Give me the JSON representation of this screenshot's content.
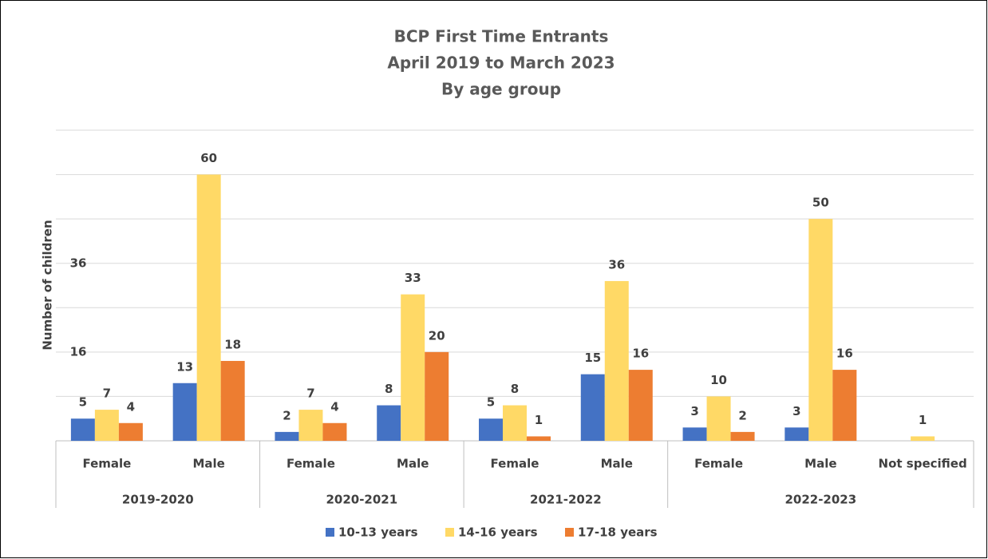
{
  "chart_data": {
    "type": "bar",
    "title": [
      "BCP First Time Entrants",
      "April 2019 to March 2023",
      "By age group"
    ],
    "y_label": "Number of children",
    "annotations": [
      "16",
      "36"
    ],
    "categories": [
      "Female",
      "Male",
      "Female",
      "Male",
      "Female",
      "Male",
      "Female",
      "Male",
      "Not specified"
    ],
    "groups": [
      {
        "label": "2019-2020",
        "count": 2
      },
      {
        "label": "2020-2021",
        "count": 2
      },
      {
        "label": "2021-2022",
        "count": 2
      },
      {
        "label": "2022-2023",
        "count": 3
      }
    ],
    "series": [
      {
        "name": "10-13 years",
        "color": "#4472c4",
        "values": [
          5,
          13,
          2,
          8,
          5,
          15,
          3,
          3,
          null
        ]
      },
      {
        "name": "14-16 years",
        "color": "#ffd966",
        "values": [
          7,
          60,
          7,
          33,
          8,
          36,
          10,
          50,
          1
        ]
      },
      {
        "name": "17-18 years",
        "color": "#ed7d31",
        "values": [
          4,
          18,
          4,
          20,
          1,
          16,
          2,
          16,
          null
        ]
      }
    ],
    "ylim": [
      0,
      70
    ],
    "yticks": [
      0,
      10,
      20,
      30,
      40,
      50,
      60,
      70
    ],
    "show_ytick_labels": false,
    "grid": true,
    "legend": "bottom"
  }
}
